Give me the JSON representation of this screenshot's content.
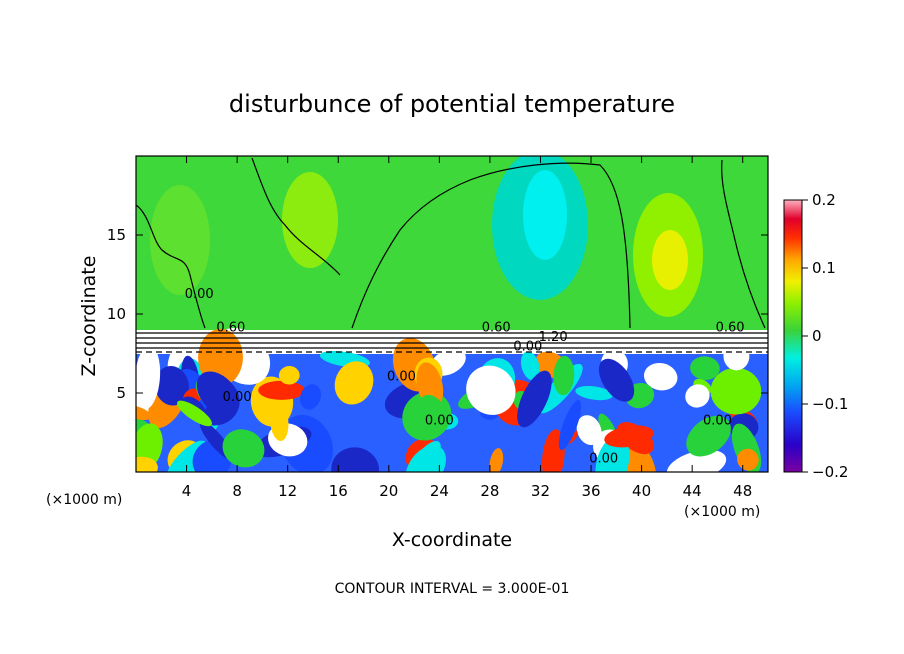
{
  "chart_data": {
    "type": "heatmap",
    "title": "disturbunce of potential temperature",
    "xlabel": "X-coordinate",
    "ylabel": "Z-coordinate",
    "x_unit_label": "(×1000 m)",
    "z_unit_label": "(×1000 m)",
    "xlim": [
      0,
      50
    ],
    "ylim": [
      0,
      20
    ],
    "x_ticks": [
      4,
      8,
      12,
      16,
      20,
      24,
      28,
      32,
      36,
      40,
      44,
      48
    ],
    "y_ticks": [
      5,
      10,
      15
    ],
    "colorbar": {
      "range": [
        -0.2,
        0.2
      ],
      "ticks": [
        0.2,
        0.1,
        0,
        -0.1,
        -0.2
      ],
      "tick_labels": [
        "0.2",
        "0.1",
        "0",
        "−0.1",
        "−0.2"
      ]
    },
    "contour_interval_text": "CONTOUR INTERVAL = 3.000E-01",
    "contour_labels": [
      {
        "text": "0.60",
        "x": 7.5,
        "z": 8.9
      },
      {
        "text": "0.60",
        "x": 28.5,
        "z": 8.9
      },
      {
        "text": "0.60",
        "x": 47.0,
        "z": 8.9
      },
      {
        "text": "1.20",
        "x": 33.0,
        "z": 8.3
      },
      {
        "text": "0.00",
        "x": 31.0,
        "z": 7.7
      },
      {
        "text": "0.00",
        "x": 8.0,
        "z": 4.5
      },
      {
        "text": "0.00",
        "x": 21.0,
        "z": 5.8
      },
      {
        "text": "0.00",
        "x": 24.0,
        "z": 3.0
      },
      {
        "text": "0.00",
        "x": 37.0,
        "z": 0.6
      },
      {
        "text": "0.00",
        "x": 5.0,
        "z": 11.0
      },
      {
        "text": "0.00",
        "x": 46.0,
        "z": 3.0
      }
    ]
  }
}
